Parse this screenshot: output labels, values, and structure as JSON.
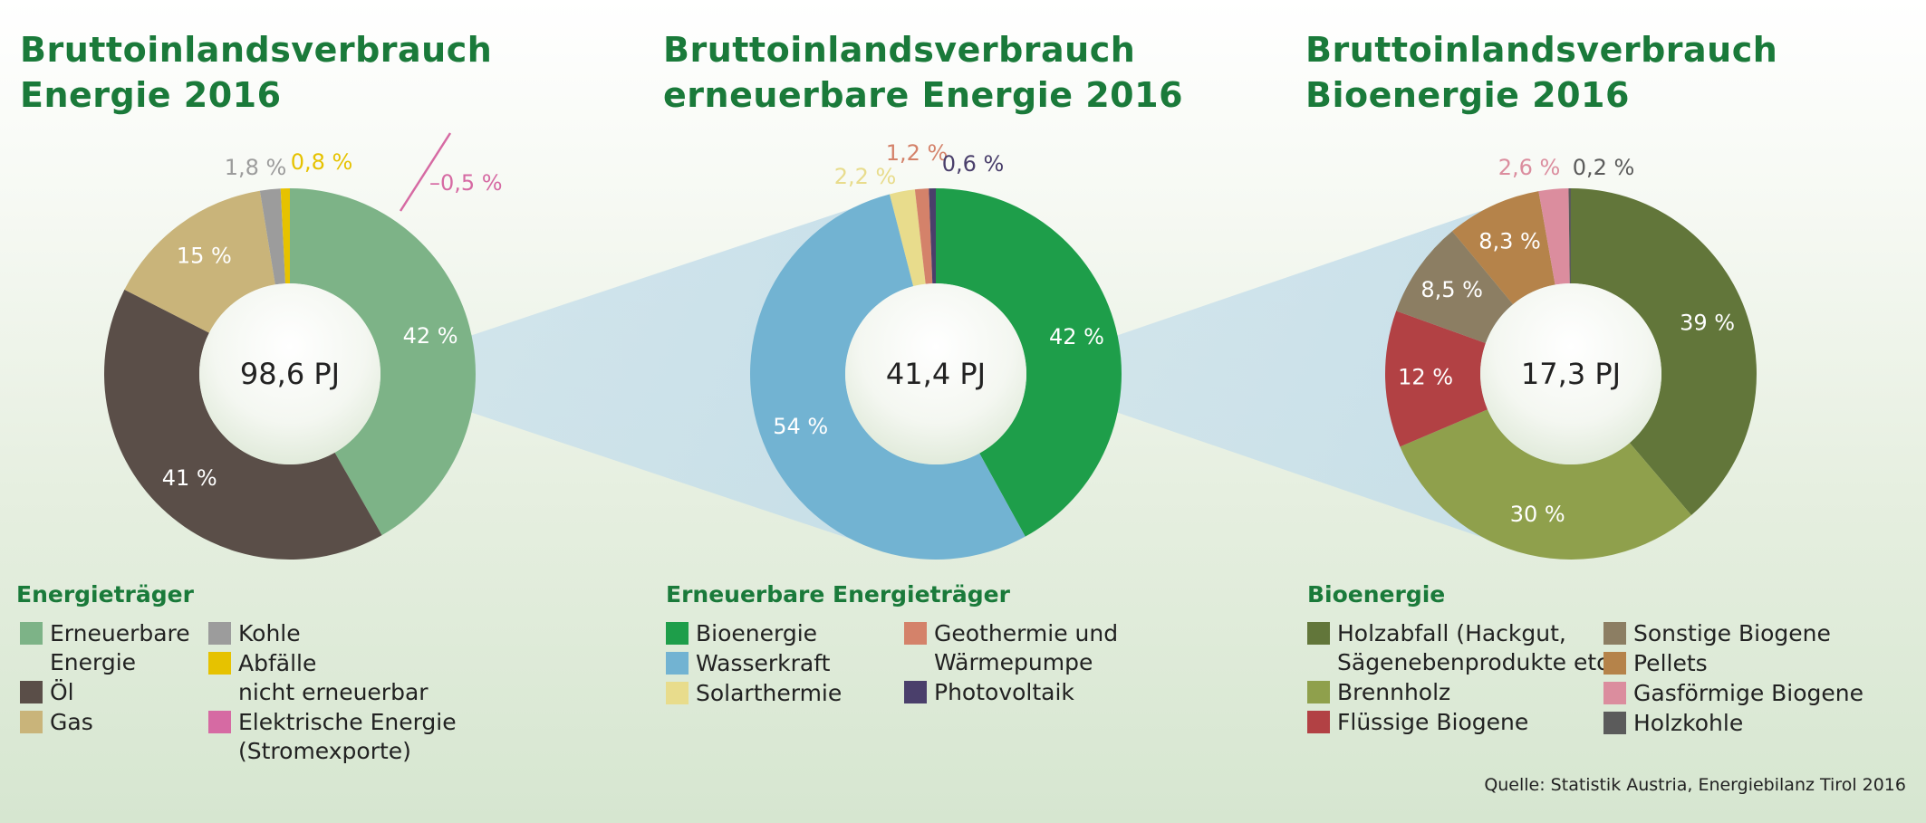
{
  "titles": [
    {
      "line1": "Bruttoinlandsverbrauch",
      "line2": "Energie 2016"
    },
    {
      "line1": "Bruttoinlandsverbrauch",
      "line2": "erneuerbare Energie 2016"
    },
    {
      "line1": "Bruttoinlandsverbrauch",
      "line2": "Bioenergie 2016"
    }
  ],
  "legends": [
    {
      "title": "Energieträger",
      "columns": [
        [
          {
            "lines": [
              "Erneuerbare",
              "Energie"
            ],
            "color": "#7db387"
          },
          {
            "lines": [
              "Öl"
            ],
            "color": "#5a4e48"
          },
          {
            "lines": [
              "Gas"
            ],
            "color": "#c9b47a"
          }
        ],
        [
          {
            "lines": [
              "Kohle"
            ],
            "color": "#9c9c9c"
          },
          {
            "lines": [
              "Abfälle",
              "nicht erneuerbar"
            ],
            "color": "#e6c200"
          },
          {
            "lines": [
              "Elektrische Energie",
              "(Stromexporte)"
            ],
            "color": "#d66aa3"
          }
        ]
      ]
    },
    {
      "title": "Erneuerbare Energieträger",
      "columns": [
        [
          {
            "lines": [
              "Bioenergie"
            ],
            "color": "#1e9e4a"
          },
          {
            "lines": [
              "Wasserkraft"
            ],
            "color": "#72b3d2"
          },
          {
            "lines": [
              "Solarthermie"
            ],
            "color": "#e8dc8c"
          }
        ],
        [
          {
            "lines": [
              "Geothermie und",
              "Wärmepumpe"
            ],
            "color": "#d4826a"
          },
          {
            "lines": [
              "Photovoltaik"
            ],
            "color": "#4a3f6b"
          }
        ]
      ]
    },
    {
      "title": "Bioenergie",
      "columns": [
        [
          {
            "lines": [
              "Holzabfall (Hackgut,",
              "Sägenebenprodukte etc.)"
            ],
            "color": "#62763a"
          },
          {
            "lines": [
              "Brennholz"
            ],
            "color": "#8fa04c"
          },
          {
            "lines": [
              "Flüssige Biogene"
            ],
            "color": "#b24144"
          }
        ],
        [
          {
            "lines": [
              "Sonstige Biogene"
            ],
            "color": "#8c7e63"
          },
          {
            "lines": [
              "Pellets"
            ],
            "color": "#b5834a"
          },
          {
            "lines": [
              "Gasförmige Biogene"
            ],
            "color": "#db8d9e"
          },
          {
            "lines": [
              "Holzkohle"
            ],
            "color": "#5b5b5b"
          }
        ]
      ]
    }
  ],
  "chart_data": [
    {
      "type": "pie",
      "subtype": "donut",
      "center_label": "98,6 PJ",
      "slices": [
        {
          "name": "Erneuerbare Energie",
          "value": 42,
          "label": "42 %",
          "color": "#7db387",
          "label_color": "#ffffff"
        },
        {
          "name": "Öl",
          "value": 41,
          "label": "41 %",
          "color": "#5a4e48",
          "label_color": "#ffffff"
        },
        {
          "name": "Gas",
          "value": 15,
          "label": "15 %",
          "color": "#c9b47a",
          "label_color": "#ffffff"
        },
        {
          "name": "Kohle",
          "value": 1.8,
          "label": "1,8 %",
          "color": "#9c9c9c",
          "label_color": "#9c9c9c"
        },
        {
          "name": "Abfälle nicht erneuerbar",
          "value": 0.8,
          "label": "0,8 %",
          "color": "#e6c200",
          "label_color": "#e6c200"
        }
      ],
      "annotations": [
        {
          "name": "Elektrische Energie (Stromexporte)",
          "value": -0.5,
          "label": "–0,5 %",
          "color": "#d66aa3"
        }
      ]
    },
    {
      "type": "pie",
      "subtype": "donut",
      "center_label": "41,4 PJ",
      "slices": [
        {
          "name": "Bioenergie",
          "value": 42,
          "label": "42 %",
          "color": "#1e9e4a",
          "label_color": "#ffffff"
        },
        {
          "name": "Wasserkraft",
          "value": 54,
          "label": "54 %",
          "color": "#72b3d2",
          "label_color": "#ffffff"
        },
        {
          "name": "Solarthermie",
          "value": 2.2,
          "label": "2,2 %",
          "color": "#e8dc8c",
          "label_color": "#e8dc8c"
        },
        {
          "name": "Geothermie und Wärmepumpe",
          "value": 1.2,
          "label": "1,2 %",
          "color": "#d4826a",
          "label_color": "#d4826a"
        },
        {
          "name": "Photovoltaik",
          "value": 0.6,
          "label": "0,6 %",
          "color": "#4a3f6b",
          "label_color": "#4a3f6b"
        }
      ]
    },
    {
      "type": "pie",
      "subtype": "donut",
      "center_label": "17,3 PJ",
      "slices": [
        {
          "name": "Holzabfall (Hackgut, Sägenebenprodukte etc.)",
          "value": 39,
          "label": "39 %",
          "color": "#62763a",
          "label_color": "#ffffff"
        },
        {
          "name": "Brennholz",
          "value": 30,
          "label": "30 %",
          "color": "#8fa04c",
          "label_color": "#ffffff"
        },
        {
          "name": "Flüssige Biogene",
          "value": 12,
          "label": "12 %",
          "color": "#b24144",
          "label_color": "#ffffff"
        },
        {
          "name": "Sonstige Biogene",
          "value": 8.5,
          "label": "8,5 %",
          "color": "#8c7e63",
          "label_color": "#ffffff"
        },
        {
          "name": "Pellets",
          "value": 8.3,
          "label": "8,3 %",
          "color": "#b5834a",
          "label_color": "#ffffff"
        },
        {
          "name": "Gasförmige Biogene",
          "value": 2.6,
          "label": "2,6 %",
          "color": "#db8d9e",
          "label_color": "#db8d9e"
        },
        {
          "name": "Holzkohle",
          "value": 0.2,
          "label": "0,2 %",
          "color": "#5b5b5b",
          "label_color": "#5b5b5b"
        }
      ]
    }
  ],
  "source": "Quelle: Statistik Austria, Energiebilanz Tirol 2016"
}
